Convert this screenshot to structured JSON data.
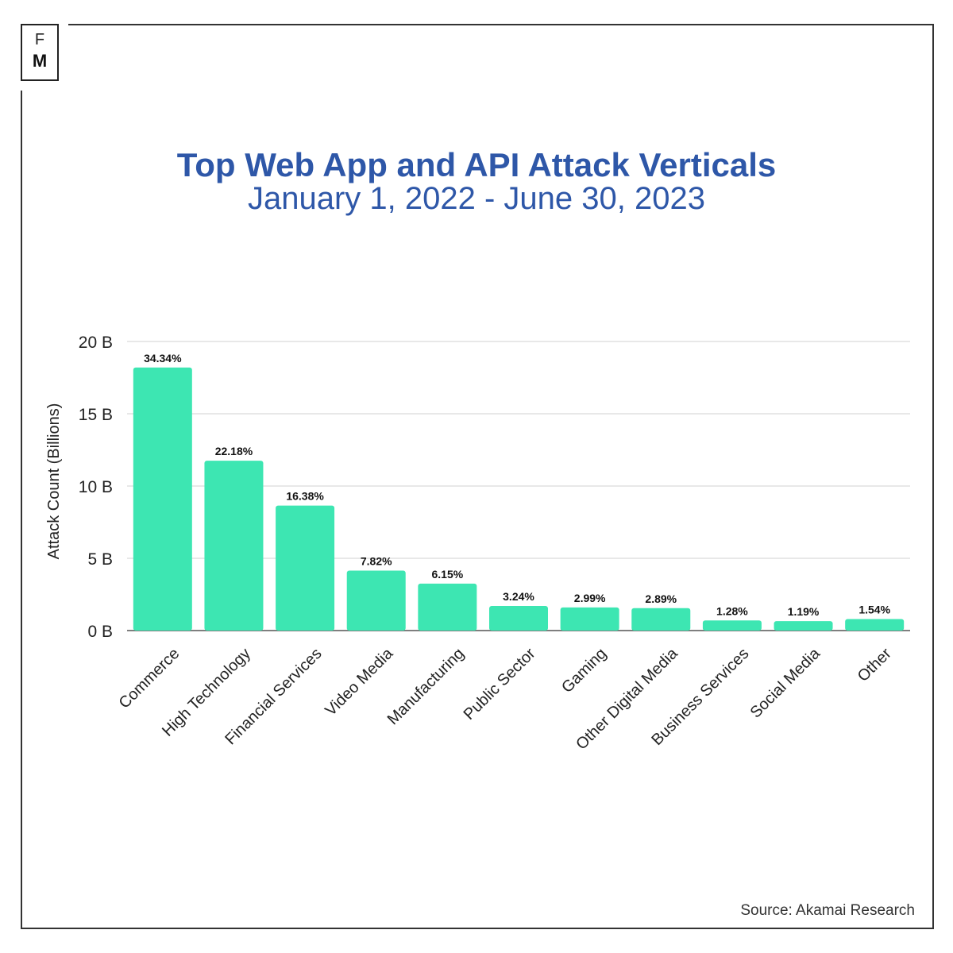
{
  "logo": {
    "top_letter": "F",
    "bottom_letter": "M"
  },
  "title": "Top Web App and API Attack Verticals",
  "subtitle": "January 1, 2022 - June 30, 2023",
  "source": "Source: Akamai Research",
  "colors": {
    "bar": "#3de6b2",
    "title": "#2e57a8",
    "grid": "#d0d0d0",
    "axis": "#555555"
  },
  "chart_data": {
    "type": "bar",
    "title": "Top Web App and API Attack Verticals",
    "subtitle": "January 1, 2022 - June 30, 2023",
    "xlabel": "",
    "ylabel": "Attack Count (Billions)",
    "ylim": [
      0,
      20
    ],
    "yticks": [
      0,
      5,
      10,
      15,
      20
    ],
    "ytick_labels": [
      "0 B",
      "5 B",
      "10 B",
      "15 B",
      "20 B"
    ],
    "grid": true,
    "categories": [
      "Commerce",
      "High Technology",
      "Financial Services",
      "Video Media",
      "Manufacturing",
      "Public Sector",
      "Gaming",
      "Other Digital Media",
      "Business Services",
      "Social Media",
      "Other"
    ],
    "values": [
      18.2,
      11.75,
      8.65,
      4.15,
      3.25,
      1.7,
      1.6,
      1.55,
      0.7,
      0.65,
      0.8
    ],
    "data_labels": [
      "34.34%",
      "22.18%",
      "16.38%",
      "7.82%",
      "6.15%",
      "3.24%",
      "2.99%",
      "2.89%",
      "1.28%",
      "1.19%",
      "1.54%"
    ]
  }
}
